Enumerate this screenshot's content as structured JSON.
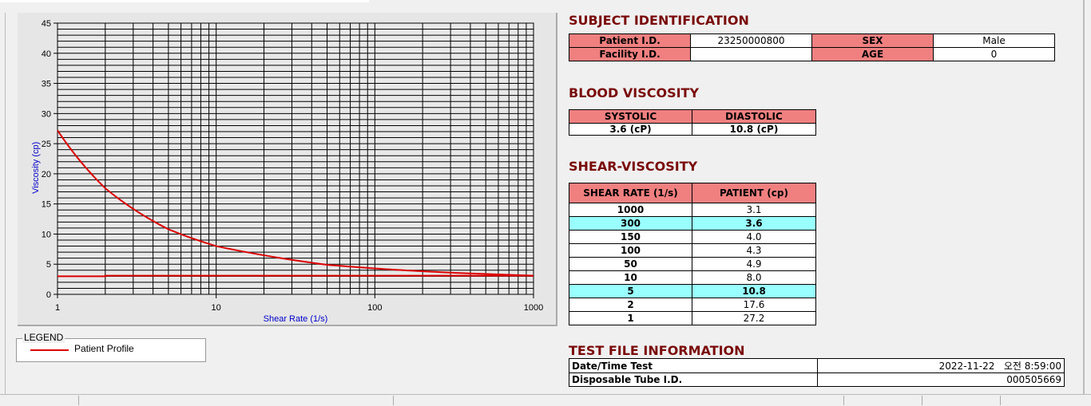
{
  "chart_data": {
    "type": "line",
    "xlabel": "Shear Rate (1/s)",
    "ylabel": "Viscosity (cp)",
    "xscale": "log",
    "xlim": [
      1,
      1000
    ],
    "ylim": [
      0,
      45
    ],
    "x_ticks": [
      "1",
      "10",
      "100",
      "1000"
    ],
    "y_ticks": [
      "0",
      "5",
      "10",
      "15",
      "20",
      "25",
      "30",
      "35",
      "40",
      "45"
    ],
    "grid": true,
    "series": [
      {
        "name": "Patient Profile",
        "color": "#dd0000",
        "x": [
          1,
          2,
          5,
          10,
          50,
          100,
          150,
          300,
          1000
        ],
        "y": [
          27.2,
          17.6,
          10.8,
          8.0,
          4.9,
          4.3,
          4.0,
          3.6,
          3.1
        ]
      },
      {
        "color": "#dd0000",
        "x": [
          1,
          2,
          2,
          1000
        ],
        "y": [
          3.0,
          3.0,
          3.1,
          3.1
        ]
      }
    ]
  },
  "legend": {
    "title": "LEGEND",
    "entry": "Patient Profile"
  },
  "subject": {
    "title": "SUBJECT IDENTIFICATION",
    "patient_id_label": "Patient I.D.",
    "patient_id": "23250000800",
    "sex_label": "SEX",
    "sex": "Male",
    "facility_label": "Facility I.D.",
    "facility": "",
    "age_label": "AGE",
    "age": "0"
  },
  "blood": {
    "title": "BLOOD VISCOSITY",
    "systolic_label": "SYSTOLIC",
    "diastolic_label": "DIASTOLIC",
    "systolic": "3.6 (cP)",
    "diastolic": "10.8 (cP)"
  },
  "shear": {
    "title": "SHEAR-VISCOSITY",
    "col1": "SHEAR RATE (1/s)",
    "col2": "PATIENT (cp)",
    "rows": [
      [
        "1000",
        "3.1",
        false
      ],
      [
        "300",
        "3.6",
        true
      ],
      [
        "150",
        "4.0",
        false
      ],
      [
        "100",
        "4.3",
        false
      ],
      [
        "50",
        "4.9",
        false
      ],
      [
        "10",
        "8.0",
        false
      ],
      [
        "5",
        "10.8",
        true
      ],
      [
        "2",
        "17.6",
        false
      ],
      [
        "1",
        "27.2",
        false
      ]
    ]
  },
  "testfile": {
    "title": "TEST FILE INFORMATION",
    "date_label": "Date/Time Test",
    "date": "2022-11-22   오전 8:59:00",
    "tube_label": "Disposable Tube I.D.",
    "tube": "000505669"
  }
}
